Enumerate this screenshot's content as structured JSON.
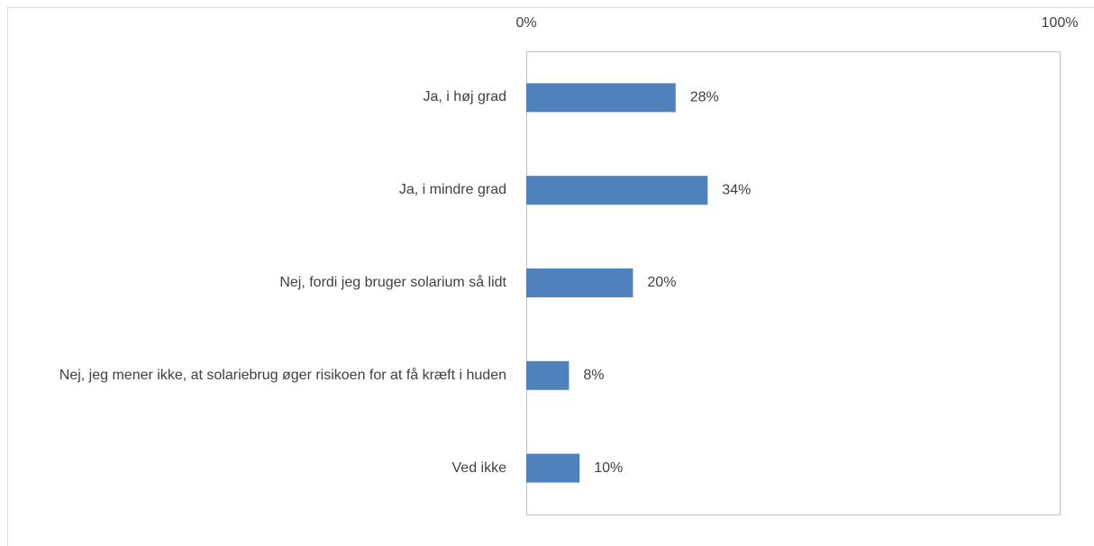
{
  "chart_data": {
    "type": "bar",
    "orientation": "horizontal",
    "categories": [
      "Ja, i høj grad",
      "Ja, i mindre grad",
      "Nej, fordi jeg bruger solarium så lidt",
      "Nej, jeg mener ikke, at solariebrug øger risikoen for at få kræft i huden",
      "Ved ikke"
    ],
    "values": [
      28,
      34,
      20,
      8,
      10
    ],
    "value_labels": [
      "28%",
      "34%",
      "20%",
      "8%",
      "10%"
    ],
    "color": "#4f81bd",
    "xlim": [
      0,
      100
    ],
    "xticks": [
      {
        "value": 0,
        "label": "0%"
      },
      {
        "value": 100,
        "label": "100%"
      }
    ],
    "grid": false
  }
}
